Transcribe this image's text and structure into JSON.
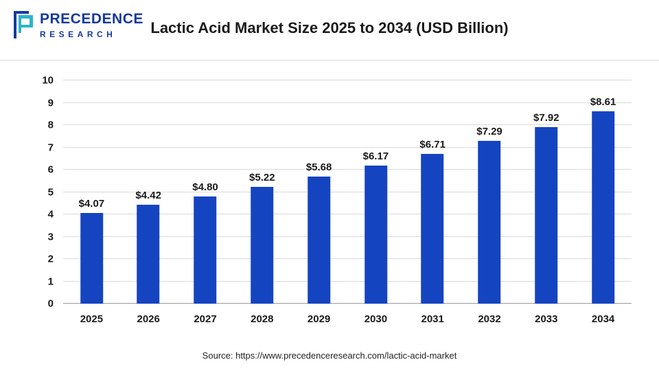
{
  "header": {
    "logo_line1": "PRECEDENCE",
    "logo_line2": "RESEARCH",
    "title": "Lactic Acid Market Size 2025 to 2034 (USD Billion)"
  },
  "chart_data": {
    "type": "bar",
    "title": "Lactic Acid Market Size 2025 to 2034 (USD Billion)",
    "categories": [
      "2025",
      "2026",
      "2027",
      "2028",
      "2029",
      "2030",
      "2031",
      "2032",
      "2033",
      "2034"
    ],
    "values": [
      4.07,
      4.42,
      4.8,
      5.22,
      5.68,
      6.17,
      6.71,
      7.29,
      7.92,
      8.61
    ],
    "value_labels": [
      "$4.07",
      "$4.42",
      "$4.80",
      "$5.22",
      "$5.68",
      "$6.17",
      "$6.71",
      "$7.29",
      "$7.92",
      "$8.61"
    ],
    "xlabel": "",
    "ylabel": "",
    "ylim": [
      0,
      10
    ],
    "yticks": [
      0,
      1,
      2,
      3,
      4,
      5,
      6,
      7,
      8,
      9,
      10
    ],
    "grid": "horizontal",
    "legend": "none",
    "bar_color": "#1544c0"
  },
  "footer": {
    "source": "Source: https://www.precedenceresearch.com/lactic-acid-market"
  },
  "colors": {
    "bar": "#1544c0",
    "logo_blue": "#16399c",
    "logo_teal": "#2ab5c9",
    "gridline": "#d9d9d9",
    "text": "#1a1a1a"
  }
}
